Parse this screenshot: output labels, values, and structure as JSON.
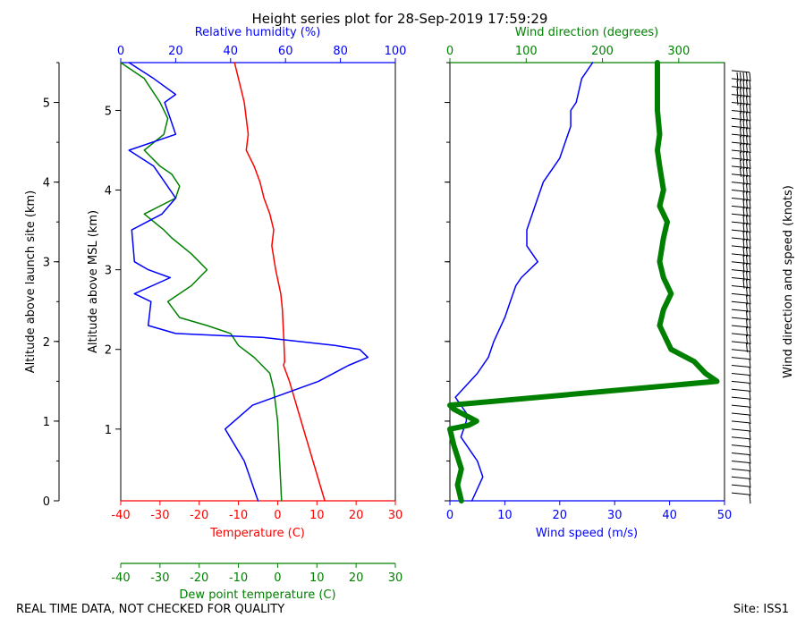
{
  "title": "Height series plot for 28-Sep-2019 17:59:29",
  "footer": {
    "left": "REAL TIME DATA, NOT CHECKED FOR QUALITY",
    "right": "Site: ISS1"
  },
  "colors": {
    "temperature": "#ff0000",
    "dewpoint": "#008000",
    "rh": "#0000ff",
    "wind_speed": "#0000ff",
    "wind_dir": "#008000",
    "barbs": "#000000"
  },
  "chart_data": [
    {
      "type": "line",
      "name": "thermo-panel",
      "title": "Height series plot for 28-Sep-2019 17:59:29",
      "y_axes": {
        "launch_site": {
          "label": "Altitude above launch site (km)",
          "ticks": [
            0,
            1,
            2,
            3,
            4,
            5
          ],
          "range": [
            0,
            5.5
          ]
        },
        "msl": {
          "label": "Altitude above MSL (km)",
          "ticks": [
            1,
            2,
            3,
            4,
            5
          ],
          "range": [
            0,
            5.5
          ]
        }
      },
      "x_axes": {
        "temperature": {
          "label": "Temperature (C)",
          "range": [
            -40,
            30
          ],
          "ticks": [
            -40,
            -30,
            -20,
            -10,
            0,
            10,
            20,
            30
          ]
        },
        "dewpoint": {
          "label": "Dew point temperature (C)",
          "range": [
            -40,
            30
          ],
          "ticks": [
            -40,
            -30,
            -20,
            -10,
            0,
            10,
            20,
            30
          ]
        },
        "rh": {
          "label": "Relative humidity (%)",
          "range": [
            0,
            100
          ],
          "ticks": [
            0,
            20,
            40,
            60,
            80,
            100
          ]
        }
      },
      "series": [
        {
          "name": "Temperature",
          "axis": "temperature",
          "color": "#ff0000",
          "points": [
            [
              12,
              0
            ],
            [
              9,
              0.5
            ],
            [
              6,
              1.0
            ],
            [
              3,
              1.5
            ],
            [
              1.5,
              1.7
            ],
            [
              1.8,
              1.75
            ],
            [
              1.6,
              2
            ],
            [
              1.2,
              2.4
            ],
            [
              0.8,
              2.6
            ],
            [
              -0.5,
              2.9
            ],
            [
              -1.5,
              3.2
            ],
            [
              -1,
              3.4
            ],
            [
              -2,
              3.6
            ],
            [
              -3.5,
              3.8
            ],
            [
              -4.5,
              4
            ],
            [
              -6,
              4.2
            ],
            [
              -8,
              4.4
            ],
            [
              -7.5,
              4.6
            ],
            [
              -8,
              4.8
            ],
            [
              -8.5,
              5.0
            ],
            [
              -10,
              5.3
            ],
            [
              -11,
              5.5
            ]
          ]
        },
        {
          "name": "Dew point",
          "axis": "dewpoint",
          "color": "#008000",
          "points": [
            [
              1,
              0
            ],
            [
              0.5,
              0.5
            ],
            [
              0,
              1
            ],
            [
              -1,
              1.4
            ],
            [
              -2,
              1.6
            ],
            [
              -4,
              1.7
            ],
            [
              -6,
              1.8
            ],
            [
              -10,
              1.95
            ],
            [
              -12,
              2.1
            ],
            [
              -18,
              2.2
            ],
            [
              -25,
              2.3
            ],
            [
              -28,
              2.5
            ],
            [
              -22,
              2.7
            ],
            [
              -18,
              2.9
            ],
            [
              -22,
              3.1
            ],
            [
              -27,
              3.3
            ],
            [
              -29,
              3.4
            ],
            [
              -34,
              3.6
            ],
            [
              -26,
              3.8
            ],
            [
              -25,
              3.95
            ],
            [
              -27,
              4.1
            ],
            [
              -30,
              4.2
            ],
            [
              -34,
              4.4
            ],
            [
              -29,
              4.6
            ],
            [
              -28,
              4.8
            ],
            [
              -30,
              5.0
            ],
            [
              -34,
              5.3
            ],
            [
              -40,
              5.5
            ]
          ]
        },
        {
          "name": "Relative humidity",
          "axis": "rh",
          "color": "#0000ff",
          "points": [
            [
              50,
              0
            ],
            [
              45,
              0.5
            ],
            [
              38,
              0.9
            ],
            [
              48,
              1.2
            ],
            [
              72,
              1.5
            ],
            [
              83,
              1.7
            ],
            [
              90,
              1.8
            ],
            [
              87,
              1.9
            ],
            [
              78,
              1.95
            ],
            [
              52,
              2.05
            ],
            [
              20,
              2.1
            ],
            [
              10,
              2.2
            ],
            [
              11,
              2.5
            ],
            [
              5,
              2.6
            ],
            [
              18,
              2.8
            ],
            [
              10,
              2.9
            ],
            [
              5,
              3.0
            ],
            [
              4,
              3.4
            ],
            [
              15,
              3.6
            ],
            [
              20,
              3.8
            ],
            [
              16,
              4.0
            ],
            [
              12,
              4.2
            ],
            [
              3,
              4.4
            ],
            [
              20,
              4.6
            ],
            [
              18,
              4.8
            ],
            [
              16,
              5.0
            ],
            [
              20,
              5.1
            ],
            [
              12,
              5.3
            ],
            [
              3,
              5.5
            ]
          ]
        }
      ]
    },
    {
      "type": "line",
      "name": "wind-panel",
      "x_axes": {
        "wind_speed": {
          "label": "Wind speed (m/s)",
          "range": [
            0,
            50
          ],
          "ticks": [
            0,
            10,
            20,
            30,
            40,
            50
          ]
        },
        "wind_dir": {
          "label": "Wind direction (degrees)",
          "range": [
            0,
            360
          ],
          "ticks": [
            0,
            100,
            200,
            300
          ]
        }
      },
      "right_label": "Wind direction and speed (knots)",
      "series": [
        {
          "name": "Wind speed",
          "axis": "wind_speed",
          "color": "#0000ff",
          "points": [
            [
              4,
              0
            ],
            [
              6,
              0.3
            ],
            [
              5,
              0.5
            ],
            [
              2,
              0.8
            ],
            [
              3,
              1.0
            ],
            [
              3,
              1.1
            ],
            [
              1,
              1.3
            ],
            [
              5,
              1.6
            ],
            [
              7,
              1.8
            ],
            [
              8,
              2.0
            ],
            [
              10,
              2.3
            ],
            [
              11,
              2.5
            ],
            [
              12,
              2.7
            ],
            [
              13,
              2.8
            ],
            [
              16,
              3.0
            ],
            [
              14,
              3.2
            ],
            [
              14,
              3.4
            ],
            [
              15,
              3.6
            ],
            [
              16,
              3.8
            ],
            [
              17,
              4.0
            ],
            [
              20,
              4.3
            ],
            [
              21,
              4.5
            ],
            [
              22,
              4.7
            ],
            [
              22,
              4.9
            ],
            [
              23,
              5.0
            ],
            [
              24,
              5.3
            ],
            [
              26,
              5.5
            ]
          ]
        },
        {
          "name": "Wind direction",
          "axis": "wind_dir",
          "color": "#008000",
          "points": [
            [
              15,
              0
            ],
            [
              10,
              0.2
            ],
            [
              15,
              0.4
            ],
            [
              5,
              0.7
            ],
            [
              0,
              0.9
            ],
            [
              25,
              0.95
            ],
            [
              35,
              1.0
            ],
            [
              5,
              1.15
            ],
            [
              0,
              1.2
            ],
            [
              350,
              1.5
            ],
            [
              335,
              1.6
            ],
            [
              320,
              1.75
            ],
            [
              290,
              1.9
            ],
            [
              285,
              2.0
            ],
            [
              275,
              2.2
            ],
            [
              280,
              2.4
            ],
            [
              290,
              2.6
            ],
            [
              280,
              2.8
            ],
            [
              275,
              3.0
            ],
            [
              280,
              3.3
            ],
            [
              285,
              3.5
            ],
            [
              275,
              3.7
            ],
            [
              280,
              3.9
            ],
            [
              275,
              4.2
            ],
            [
              272,
              4.4
            ],
            [
              275,
              4.6
            ],
            [
              272,
              4.9
            ],
            [
              272,
              5.2
            ],
            [
              272,
              5.5
            ]
          ]
        }
      ]
    }
  ]
}
